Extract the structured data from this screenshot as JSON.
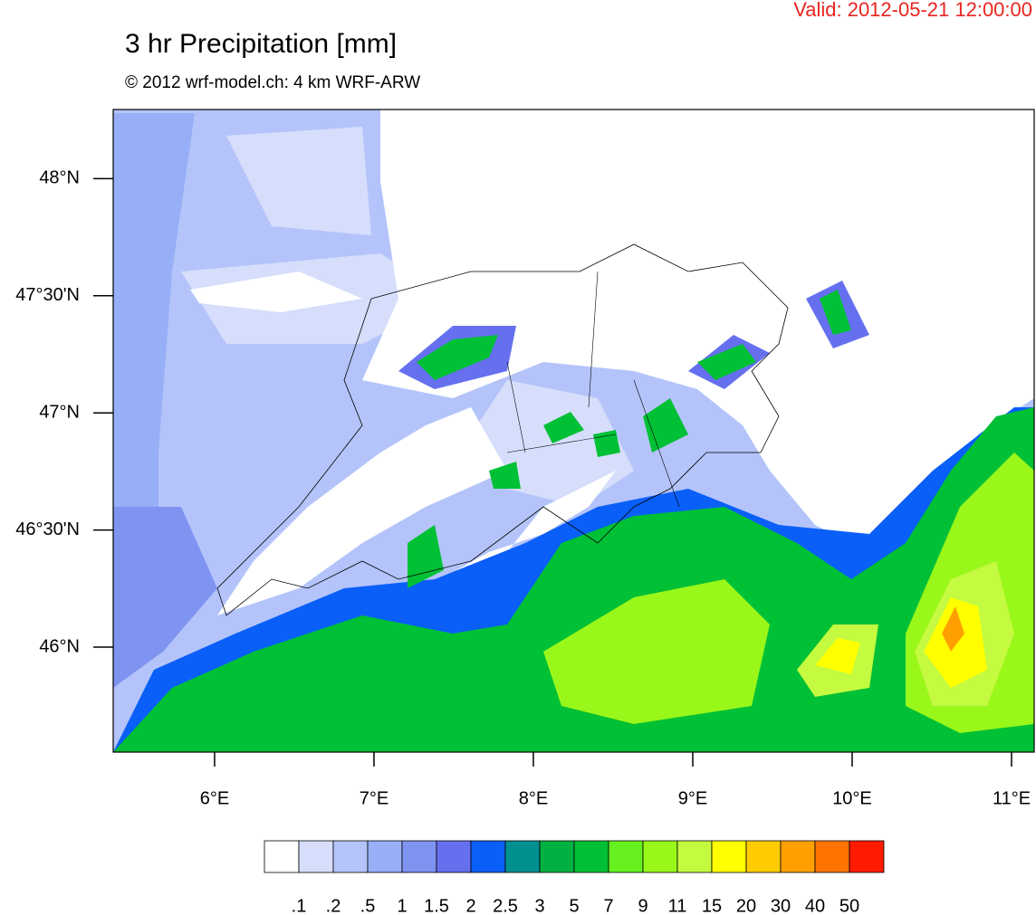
{
  "valid": "Valid: 2012-05-21 12:00:00",
  "chart_data": {
    "type": "map",
    "title": "3 hr Precipitation [mm]",
    "subtitle": "© 2012 wrf-model.ch: 4 km WRF-ARW",
    "xlim": [
      5.364,
      11.142
    ],
    "ylim": [
      45.552,
      48.295
    ],
    "xticks": [
      {
        "value": 6,
        "label": "6°E"
      },
      {
        "value": 7,
        "label": "7°E"
      },
      {
        "value": 8,
        "label": "8°E"
      },
      {
        "value": 9,
        "label": "9°E"
      },
      {
        "value": 10,
        "label": "10°E"
      },
      {
        "value": 11,
        "label": "11°E"
      }
    ],
    "yticks": [
      {
        "value": 46,
        "label": "46°N"
      },
      {
        "value": 46.5,
        "label": "46°30'N"
      },
      {
        "value": 47,
        "label": "47°N"
      },
      {
        "value": 47.5,
        "label": "47°30'N"
      },
      {
        "value": 48,
        "label": "48°N"
      }
    ],
    "colorbar": {
      "levels": [
        {
          "value": 0.1,
          "label": ".1"
        },
        {
          "value": 0.2,
          "label": ".2"
        },
        {
          "value": 0.5,
          "label": ".5"
        },
        1,
        1.5,
        2,
        2.5,
        3,
        5,
        7,
        9,
        11,
        15,
        20,
        30,
        40,
        50
      ],
      "colors": [
        "#ffffff",
        "#d6defc",
        "#b4c4fa",
        "#96aff7",
        "#7f93f0",
        "#6670ef",
        "#0a5ff8",
        "#009090",
        "#00b040",
        "#00c035",
        "#66f020",
        "#99f71a",
        "#c4fa40",
        "#ffff00",
        "#ffcc00",
        "#ffa000",
        "#ff7300",
        "#ff1a00"
      ]
    }
  }
}
